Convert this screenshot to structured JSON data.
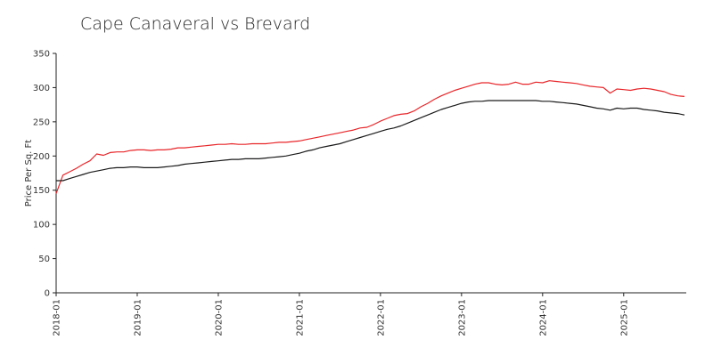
{
  "chart_data": {
    "type": "line",
    "title": "Cape Canaveral vs Brevard",
    "xlabel": "",
    "ylabel": "Price Per Sq. Ft",
    "ylim": [
      0,
      350
    ],
    "yticks": [
      0,
      50,
      100,
      150,
      200,
      250,
      300,
      350
    ],
    "xticks": [
      "2018-01",
      "2019-01",
      "2020-01",
      "2021-01",
      "2022-01",
      "2023-01",
      "2024-01",
      "2025-01"
    ],
    "x_start": "2018-01",
    "x_months": 94,
    "series": [
      {
        "name": "Cape Canaveral",
        "color": "#e8262a",
        "values": [
          145,
          172,
          177,
          182,
          188,
          193,
          203,
          201,
          205,
          206,
          206,
          208,
          209,
          209,
          208,
          209,
          209,
          210,
          212,
          212,
          213,
          214,
          215,
          216,
          217,
          217,
          218,
          217,
          217,
          218,
          218,
          218,
          219,
          220,
          220,
          221,
          222,
          224,
          226,
          228,
          230,
          232,
          234,
          236,
          238,
          241,
          242,
          246,
          251,
          255,
          259,
          261,
          262,
          266,
          272,
          277,
          283,
          288,
          292,
          296,
          299,
          302,
          305,
          307,
          307,
          305,
          304,
          305,
          308,
          305,
          305,
          308,
          307,
          310,
          309,
          308,
          307,
          306,
          304,
          302,
          301,
          300,
          292,
          298,
          297,
          296,
          298,
          299,
          298,
          296,
          294,
          290,
          288,
          287
        ]
      },
      {
        "name": "Brevard",
        "color": "#1a1a1a",
        "values": [
          164,
          164,
          167,
          170,
          173,
          176,
          178,
          180,
          182,
          183,
          183,
          184,
          184,
          183,
          183,
          183,
          184,
          185,
          186,
          188,
          189,
          190,
          191,
          192,
          193,
          194,
          195,
          195,
          196,
          196,
          196,
          197,
          198,
          199,
          200,
          202,
          204,
          207,
          209,
          212,
          214,
          216,
          218,
          221,
          224,
          227,
          230,
          233,
          236,
          239,
          241,
          244,
          248,
          252,
          256,
          260,
          264,
          268,
          271,
          274,
          277,
          279,
          280,
          280,
          281,
          281,
          281,
          281,
          281,
          281,
          281,
          281,
          280,
          280,
          279,
          278,
          277,
          276,
          274,
          272,
          270,
          269,
          267,
          270,
          269,
          270,
          270,
          268,
          267,
          266,
          264,
          263,
          262,
          260
        ]
      }
    ]
  }
}
